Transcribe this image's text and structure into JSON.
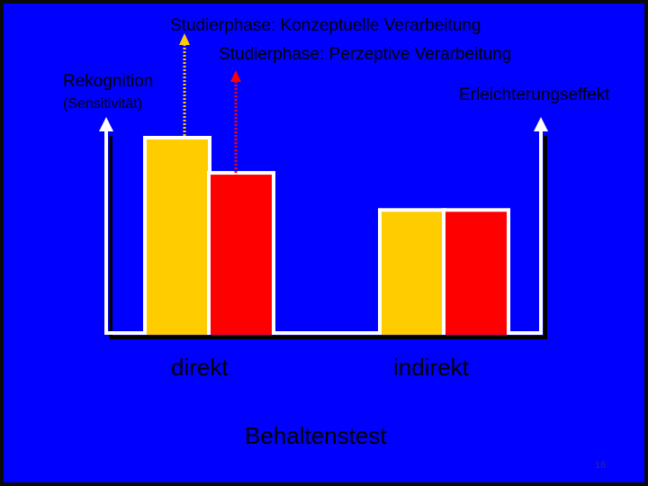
{
  "chart_data": {
    "type": "bar",
    "categories": [
      "direkt",
      "indirekt"
    ],
    "series": [
      {
        "name": "Studierphase: Konzeptuelle Verarbeitung",
        "color": "#ffcc00",
        "values": [
          100,
          63
        ]
      },
      {
        "name": "Studierphase: Perzeptive Verarbeitung",
        "color": "#ff0000",
        "values": [
          82,
          63
        ]
      }
    ],
    "ylim": [
      0,
      100
    ],
    "ylabel": "Rekognition",
    "ylabel_sub": "(Sensitivität)",
    "ylabel_right": "Erleichterungseffekt",
    "xlabel": "Behaltenstest",
    "legend": "top, arrows pointing to bars",
    "grid": false
  },
  "slide_number": "16",
  "colors": {
    "background": "#0000ff",
    "axis": "#ffffff",
    "text": "#000000"
  }
}
